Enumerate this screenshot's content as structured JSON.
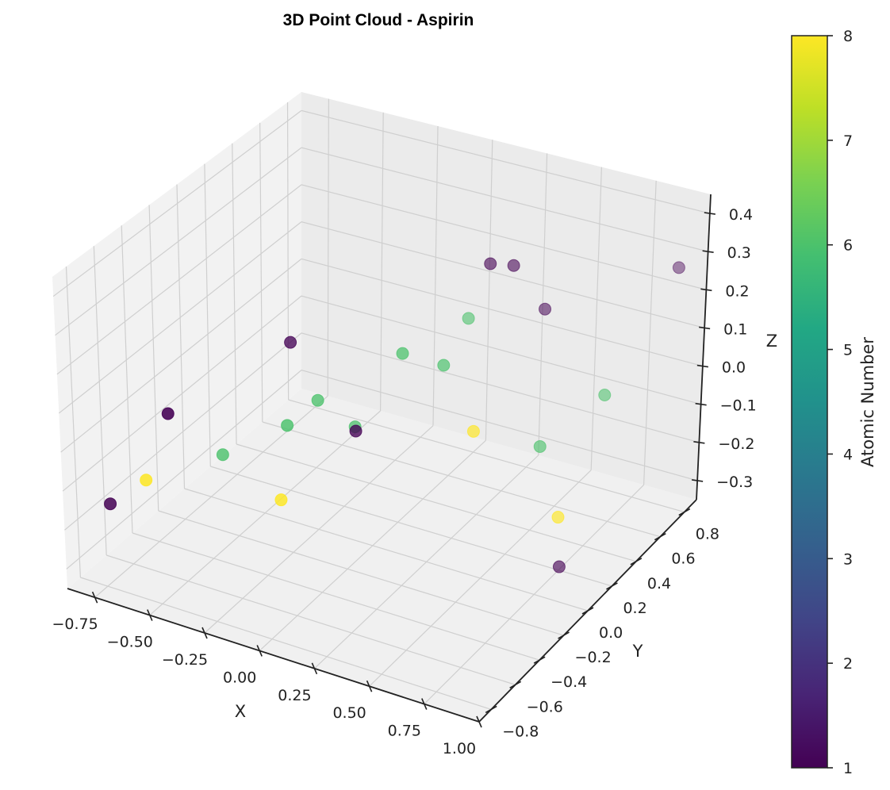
{
  "chart_data": {
    "type": "scatter",
    "projection": "3d",
    "title": "3D Point Cloud - Aspirin",
    "xlabel": "X",
    "ylabel": "Y",
    "zlabel": "Z",
    "xlim": [
      -0.875,
      1.0
    ],
    "ylim": [
      -0.9,
      0.9
    ],
    "zlim": [
      -0.35,
      0.45
    ],
    "xticks": [
      "−0.75",
      "−0.50",
      "−0.25",
      "0.00",
      "0.25",
      "0.50",
      "0.75",
      "1.00"
    ],
    "yticks": [
      "−0.8",
      "−0.6",
      "−0.4",
      "−0.2",
      "0.0",
      "0.2",
      "0.4",
      "0.6",
      "0.8"
    ],
    "zticks": [
      "−0.3",
      "−0.2",
      "−0.1",
      "0.0",
      "0.1",
      "0.2",
      "0.3",
      "0.4"
    ],
    "grid": true,
    "colormap": "viridis",
    "colorbar": {
      "label": "Atomic Number",
      "range": [
        1,
        8
      ],
      "ticks": [
        "1",
        "2",
        "3",
        "4",
        "5",
        "6",
        "7",
        "8"
      ]
    },
    "points": [
      {
        "x": -0.86,
        "y": -0.58,
        "z": -0.22,
        "value": 1
      },
      {
        "x": -0.68,
        "y": -0.6,
        "z": -0.12,
        "value": 8
      },
      {
        "x": -0.5,
        "y": -0.72,
        "z": 0.12,
        "value": 1
      },
      {
        "x": -0.42,
        "y": -0.45,
        "z": -0.05,
        "value": 6
      },
      {
        "x": -0.2,
        "y": -0.3,
        "z": 0.24,
        "value": 1
      },
      {
        "x": -0.1,
        "y": -0.5,
        "z": 0.1,
        "value": 6
      },
      {
        "x": -0.05,
        "y": -0.35,
        "z": 0.13,
        "value": 6
      },
      {
        "x": -0.1,
        "y": -0.55,
        "z": -0.08,
        "value": 8
      },
      {
        "x": 0.06,
        "y": -0.25,
        "z": 0.05,
        "value": 6
      },
      {
        "x": 0.12,
        "y": -0.35,
        "z": 0.08,
        "value": 1
      },
      {
        "x": 0.24,
        "y": -0.2,
        "z": 0.26,
        "value": 6
      },
      {
        "x": 0.4,
        "y": 0.2,
        "z": 0.4,
        "value": 1
      },
      {
        "x": 0.34,
        "y": -0.05,
        "z": 0.2,
        "value": 6
      },
      {
        "x": 0.28,
        "y": 0.25,
        "z": 0.22,
        "value": 6
      },
      {
        "x": 0.48,
        "y": -0.05,
        "z": 0.05,
        "value": 8
      },
      {
        "x": 0.46,
        "y": 0.28,
        "z": 0.38,
        "value": 1
      },
      {
        "x": 0.54,
        "y": 0.4,
        "z": 0.24,
        "value": 1
      },
      {
        "x": 0.7,
        "y": 0.1,
        "z": 0.0,
        "value": 6
      },
      {
        "x": 0.82,
        "y": 0.05,
        "z": -0.15,
        "value": 8
      },
      {
        "x": 0.78,
        "y": 0.15,
        "z": -0.32,
        "value": 1
      },
      {
        "x": 0.85,
        "y": 0.35,
        "z": 0.08,
        "value": 6
      },
      {
        "x": 0.95,
        "y": 0.75,
        "z": 0.3,
        "value": 1
      }
    ]
  }
}
